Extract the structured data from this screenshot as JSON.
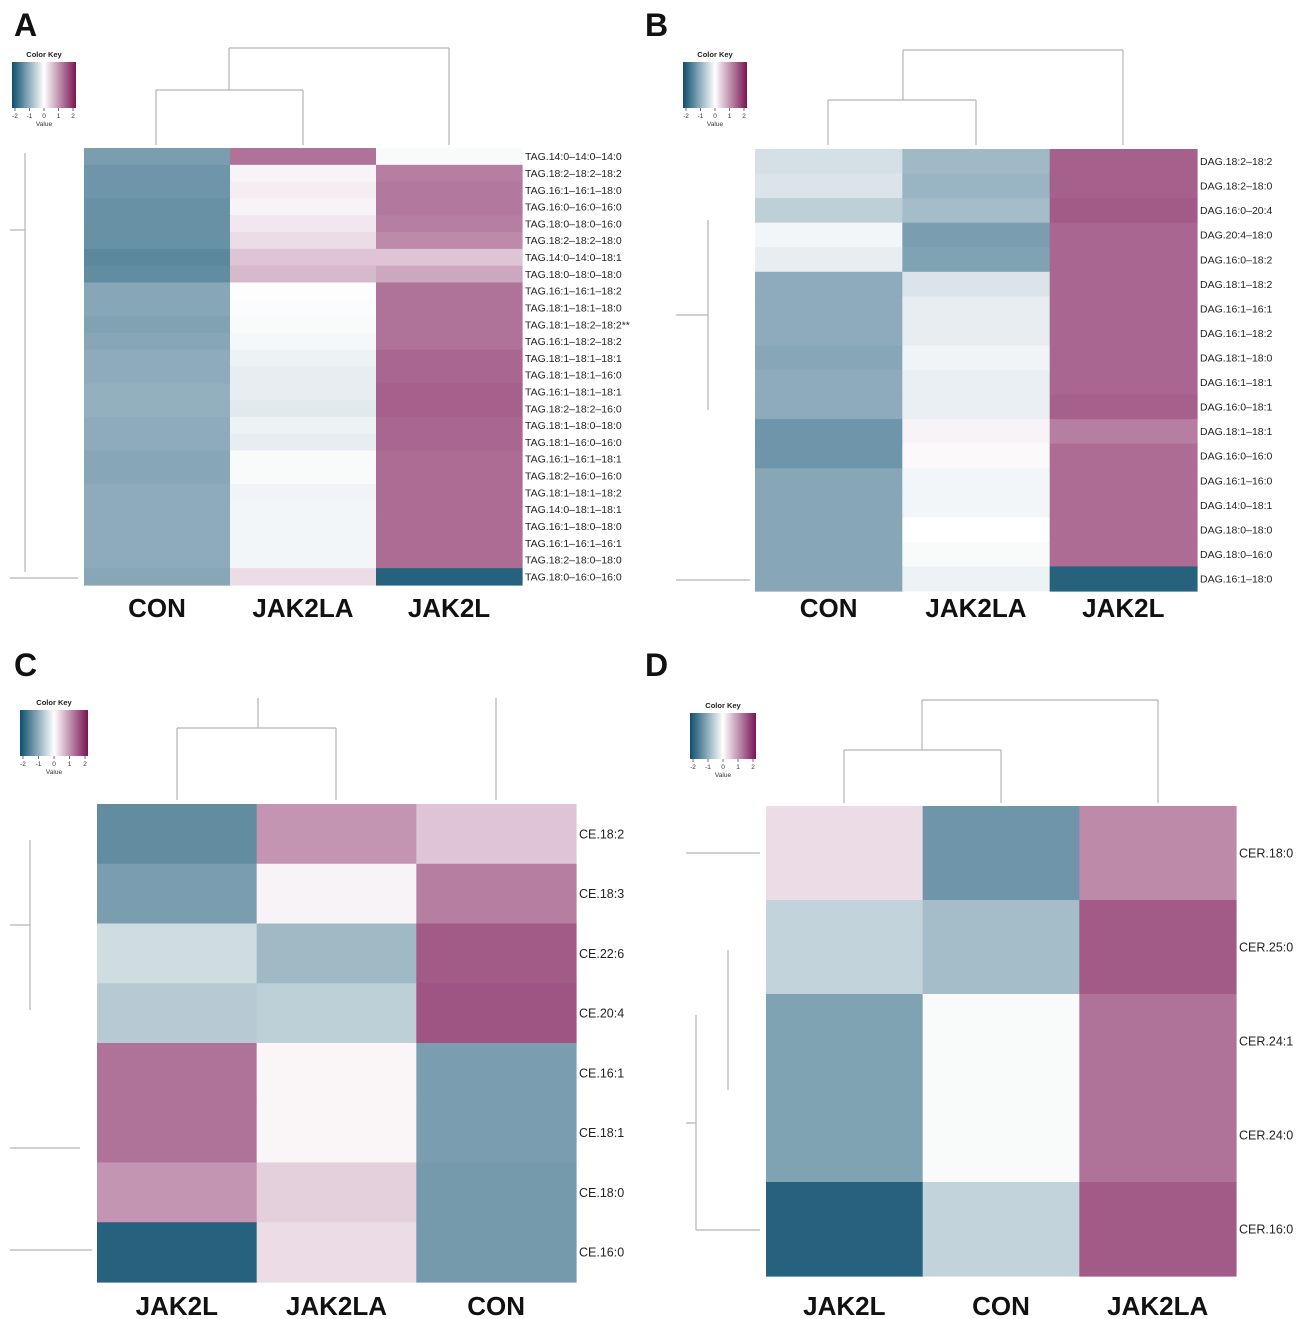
{
  "colors": {
    "low": "#0e4f6f",
    "mid": "#ffffff",
    "high": "#7a1454",
    "dendrogram": "#b5b5b5"
  },
  "color_key": {
    "title": "Color Key",
    "subtitle": "Value",
    "ticks": [
      "-2",
      "-1",
      "0",
      "1",
      "2"
    ]
  },
  "chart_data": [
    {
      "panel": "A",
      "type": "heatmap",
      "scale": [
        -2,
        2
      ],
      "columns": [
        "CON",
        "JAK2LA",
        "JAK2L"
      ],
      "rows": [
        "TAG.14:0–14:0–14:0",
        "TAG.18:2–18:2–18:2",
        "TAG.16:1–16:1–18:0",
        "TAG.16:0–16:0–16:0",
        "TAG.18:0–18:0–16:0",
        "TAG.18:2–18:2–18:0",
        "TAG.14:0–14:0–18:1",
        "TAG.18:0–18:0–18:0",
        "TAG.16:1–16:1–18:2",
        "TAG.18:1–18:1–18:0",
        "TAG.18:1–18:2–18:2**",
        "TAG.16:1–18:2–18:2",
        "TAG.18:1–18:1–18:1",
        "TAG.18:1–18:1–16:0",
        "TAG.16:1–18:1–18:1",
        "TAG.18:2–18:2–16:0",
        "TAG.18:1–18:0–18:0",
        "TAG.18:1–16:0–16:0",
        "TAG.16:1–16:1–18:1",
        "TAG.18:2–16:0–16:0",
        "TAG.18:1–18:1–18:2",
        "TAG.14:0–18:1–18:1",
        "TAG.16:1–18:0–18:0",
        "TAG.16:1–16:1–16:1",
        "TAG.18:2–18:0–18:0",
        "TAG.18:0–16:0–16:0"
      ],
      "values": [
        [
          -1.1,
          1.2,
          -0.05
        ],
        [
          -1.2,
          0.1,
          1.1
        ],
        [
          -1.2,
          0.15,
          1.15
        ],
        [
          -1.25,
          0.1,
          1.15
        ],
        [
          -1.25,
          0.2,
          1.1
        ],
        [
          -1.25,
          0.3,
          1.0
        ],
        [
          -1.35,
          0.5,
          0.5
        ],
        [
          -1.3,
          0.6,
          0.75
        ],
        [
          -1.0,
          -0.02,
          1.2
        ],
        [
          -1.0,
          -0.03,
          1.2
        ],
        [
          -1.05,
          -0.05,
          1.2
        ],
        [
          -1.0,
          -0.08,
          1.2
        ],
        [
          -0.95,
          -0.15,
          1.3
        ],
        [
          -0.95,
          -0.2,
          1.3
        ],
        [
          -0.9,
          -0.2,
          1.35
        ],
        [
          -0.9,
          -0.25,
          1.35
        ],
        [
          -0.95,
          -0.15,
          1.3
        ],
        [
          -0.95,
          -0.2,
          1.3
        ],
        [
          -1.0,
          -0.05,
          1.25
        ],
        [
          -1.0,
          -0.05,
          1.25
        ],
        [
          -0.95,
          -0.12,
          1.25
        ],
        [
          -0.95,
          -0.1,
          1.25
        ],
        [
          -0.95,
          -0.1,
          1.25
        ],
        [
          -0.95,
          -0.1,
          1.25
        ],
        [
          -0.95,
          -0.1,
          1.25
        ],
        [
          -1.0,
          0.3,
          -1.8
        ]
      ]
    },
    {
      "panel": "B",
      "type": "heatmap",
      "scale": [
        -2,
        2
      ],
      "columns": [
        "CON",
        "JAK2LA",
        "JAK2L"
      ],
      "rows": [
        "DAG.18:2–18:2",
        "DAG.18:2–18:0",
        "DAG.16:0–20:4",
        "DAG.20:4–18:0",
        "DAG.16:0–18:2",
        "DAG.18:1–18:2",
        "DAG.16:1–16:1",
        "DAG.16:1–18:2",
        "DAG.18:1–18:0",
        "DAG.16:1–18:1",
        "DAG.16:0–18:1",
        "DAG.18:1–18:1",
        "DAG.16:0–16:0",
        "DAG.16:1–16:0",
        "DAG.14:0–18:1",
        "DAG.18:0–18:0",
        "DAG.18:0–16:0",
        "DAG.16:1–18:0"
      ],
      "values": [
        [
          -0.35,
          -0.8,
          1.35
        ],
        [
          -0.3,
          -0.85,
          1.35
        ],
        [
          -0.55,
          -0.75,
          1.4
        ],
        [
          -0.1,
          -1.1,
          1.3
        ],
        [
          -0.2,
          -1.05,
          1.3
        ],
        [
          -0.95,
          -0.3,
          1.3
        ],
        [
          -0.95,
          -0.2,
          1.3
        ],
        [
          -0.95,
          -0.2,
          1.3
        ],
        [
          -1.0,
          -0.12,
          1.3
        ],
        [
          -0.95,
          -0.18,
          1.3
        ],
        [
          -0.95,
          -0.18,
          1.35
        ],
        [
          -1.2,
          0.1,
          1.1
        ],
        [
          -1.2,
          0.05,
          1.25
        ],
        [
          -1.0,
          -0.1,
          1.25
        ],
        [
          -1.0,
          -0.1,
          1.25
        ],
        [
          -1.0,
          0.0,
          1.25
        ],
        [
          -1.0,
          -0.05,
          1.25
        ],
        [
          -1.0,
          -0.15,
          -1.8
        ]
      ]
    },
    {
      "panel": "C",
      "type": "heatmap",
      "scale": [
        -2,
        2
      ],
      "columns": [
        "JAK2L",
        "JAK2LA",
        "CON"
      ],
      "rows": [
        "CE.18:2",
        "CE.18:3",
        "CE.22:6",
        "CE.20:4",
        "CE.16:1",
        "CE.18:1",
        "CE.18:0",
        "CE.16:0"
      ],
      "values": [
        [
          -1.3,
          0.9,
          0.5
        ],
        [
          -1.1,
          0.1,
          1.1
        ],
        [
          -0.4,
          -0.8,
          1.4
        ],
        [
          -0.6,
          -0.55,
          1.45
        ],
        [
          1.2,
          0.08,
          -1.1
        ],
        [
          1.2,
          0.08,
          -1.1
        ],
        [
          0.9,
          0.4,
          -1.15
        ],
        [
          -1.8,
          0.3,
          -1.15
        ]
      ]
    },
    {
      "panel": "D",
      "type": "heatmap",
      "scale": [
        -2,
        2
      ],
      "columns": [
        "JAK2L",
        "CON",
        "JAK2LA"
      ],
      "rows": [
        "CER.18:0",
        "CER.25:0",
        "CER.24:1",
        "CER.24:0",
        "CER.16:0"
      ],
      "values": [
        [
          0.3,
          -1.2,
          1.0
        ],
        [
          -0.5,
          -0.75,
          1.4
        ],
        [
          -1.05,
          -0.05,
          1.2
        ],
        [
          -1.05,
          -0.05,
          1.2
        ],
        [
          -1.8,
          -0.5,
          1.4
        ]
      ]
    }
  ]
}
